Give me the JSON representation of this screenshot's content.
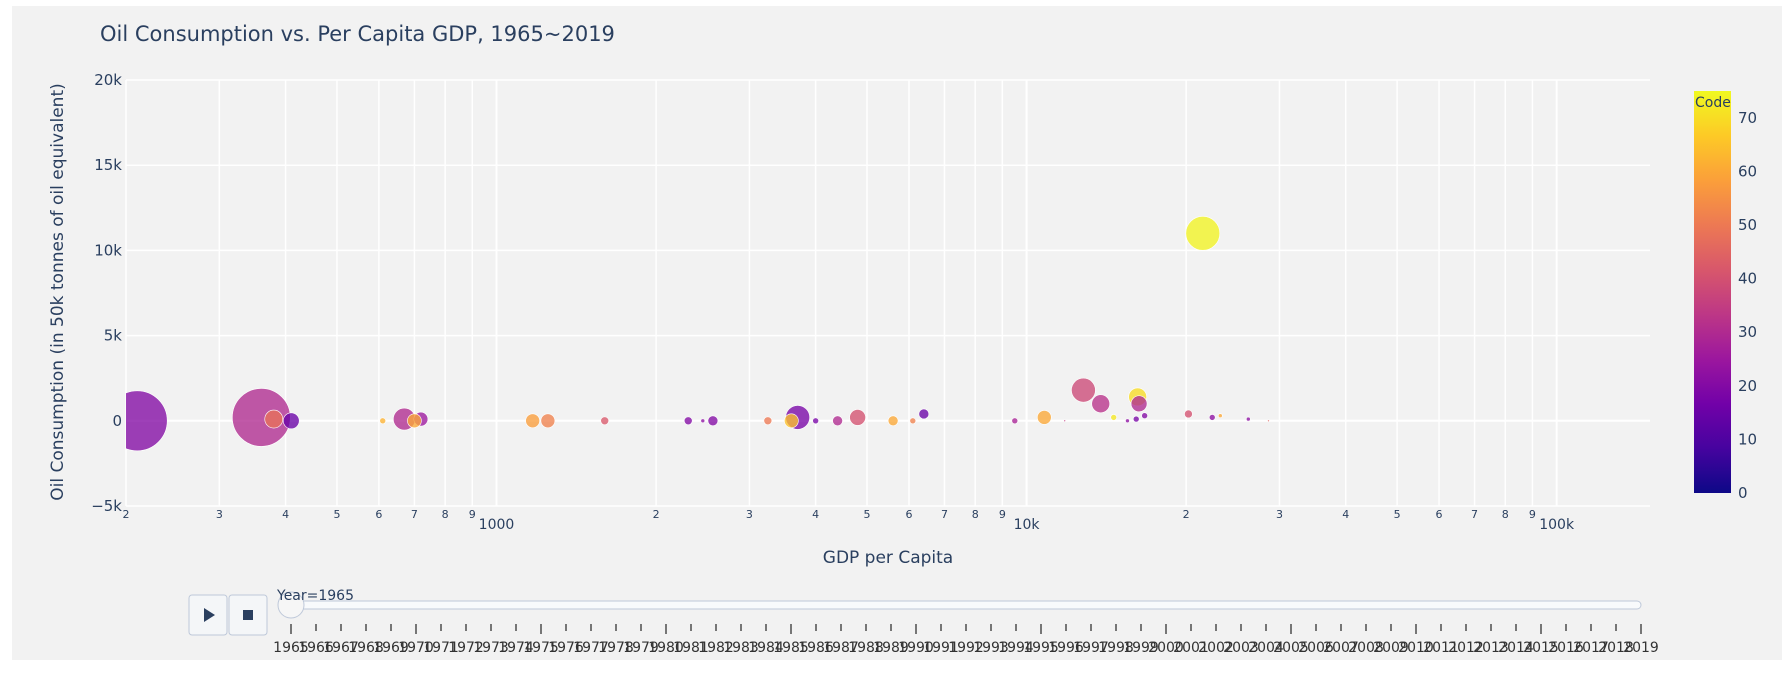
{
  "chart_data": {
    "type": "scatter",
    "title": "Oil Consumption vs. Per Capita GDP, 1965~2019",
    "xlabel": "GDP per Capita",
    "ylabel": "Oil Consumption (in 50k tonnes of oil equivalent)",
    "x_scale": "log",
    "xlim": [
      200,
      150000
    ],
    "ylim": [
      -5000,
      20000
    ],
    "y_ticks": [
      {
        "value": -5000,
        "label": "−5k"
      },
      {
        "value": 0,
        "label": "0"
      },
      {
        "value": 5000,
        "label": "5k"
      },
      {
        "value": 10000,
        "label": "10k"
      },
      {
        "value": 15000,
        "label": "15k"
      },
      {
        "value": 20000,
        "label": "20k"
      }
    ],
    "x_ticks": [
      {
        "value": 200,
        "label": "2",
        "major": false
      },
      {
        "value": 300,
        "label": "3",
        "major": false
      },
      {
        "value": 400,
        "label": "4",
        "major": false
      },
      {
        "value": 500,
        "label": "5",
        "major": false
      },
      {
        "value": 600,
        "label": "6",
        "major": false
      },
      {
        "value": 700,
        "label": "7",
        "major": false
      },
      {
        "value": 800,
        "label": "8",
        "major": false
      },
      {
        "value": 900,
        "label": "9",
        "major": false
      },
      {
        "value": 1000,
        "label": "1000",
        "major": true
      },
      {
        "value": 2000,
        "label": "2",
        "major": false
      },
      {
        "value": 3000,
        "label": "3",
        "major": false
      },
      {
        "value": 4000,
        "label": "4",
        "major": false
      },
      {
        "value": 5000,
        "label": "5",
        "major": false
      },
      {
        "value": 6000,
        "label": "6",
        "major": false
      },
      {
        "value": 7000,
        "label": "7",
        "major": false
      },
      {
        "value": 8000,
        "label": "8",
        "major": false
      },
      {
        "value": 9000,
        "label": "9",
        "major": false
      },
      {
        "value": 10000,
        "label": "10k",
        "major": true
      },
      {
        "value": 20000,
        "label": "2",
        "major": false
      },
      {
        "value": 30000,
        "label": "3",
        "major": false
      },
      {
        "value": 40000,
        "label": "4",
        "major": false
      },
      {
        "value": 50000,
        "label": "5",
        "major": false
      },
      {
        "value": 60000,
        "label": "6",
        "major": false
      },
      {
        "value": 70000,
        "label": "7",
        "major": false
      },
      {
        "value": 80000,
        "label": "8",
        "major": false
      },
      {
        "value": 90000,
        "label": "9",
        "major": false
      },
      {
        "value": 100000,
        "label": "100k",
        "major": true
      }
    ],
    "colorbar": {
      "title": "Code",
      "min": 0,
      "max": 75,
      "ticks": [
        0,
        10,
        20,
        30,
        40,
        50,
        60,
        70
      ],
      "colorscale": [
        "#0d0887",
        "#46039f",
        "#7201a8",
        "#9c179e",
        "#bd3786",
        "#d8576b",
        "#ed7953",
        "#fb9f3a",
        "#fdca26",
        "#f0f921"
      ]
    },
    "points": [
      {
        "x": 210,
        "y": 0,
        "code": 20,
        "size": 30
      },
      {
        "x": 360,
        "y": 200,
        "code": 30,
        "size": 29
      },
      {
        "x": 380,
        "y": 100,
        "code": 48,
        "size": 9
      },
      {
        "x": 410,
        "y": 0,
        "code": 15,
        "size": 8
      },
      {
        "x": 610,
        "y": 0,
        "code": 62,
        "size": 3
      },
      {
        "x": 670,
        "y": 100,
        "code": 30,
        "size": 11
      },
      {
        "x": 720,
        "y": 100,
        "code": 25,
        "size": 7
      },
      {
        "x": 700,
        "y": 0,
        "code": 60,
        "size": 7
      },
      {
        "x": 1170,
        "y": 0,
        "code": 58,
        "size": 7
      },
      {
        "x": 1250,
        "y": 0,
        "code": 52,
        "size": 7
      },
      {
        "x": 1600,
        "y": 0,
        "code": 42,
        "size": 4
      },
      {
        "x": 2300,
        "y": 0,
        "code": 20,
        "size": 4
      },
      {
        "x": 2450,
        "y": 0,
        "code": 22,
        "size": 2
      },
      {
        "x": 2560,
        "y": 0,
        "code": 20,
        "size": 5
      },
      {
        "x": 3250,
        "y": 0,
        "code": 50,
        "size": 4
      },
      {
        "x": 3700,
        "y": 200,
        "code": 18,
        "size": 12
      },
      {
        "x": 3600,
        "y": 0,
        "code": 65,
        "size": 7
      },
      {
        "x": 4000,
        "y": 0,
        "code": 18,
        "size": 3
      },
      {
        "x": 4400,
        "y": 0,
        "code": 30,
        "size": 5
      },
      {
        "x": 4800,
        "y": 200,
        "code": 40,
        "size": 8
      },
      {
        "x": 5600,
        "y": 0,
        "code": 60,
        "size": 5
      },
      {
        "x": 6100,
        "y": 0,
        "code": 52,
        "size": 3
      },
      {
        "x": 6400,
        "y": 400,
        "code": 15,
        "size": 5
      },
      {
        "x": 9500,
        "y": 0,
        "code": 28,
        "size": 3
      },
      {
        "x": 10800,
        "y": 200,
        "code": 60,
        "size": 7
      },
      {
        "x": 11800,
        "y": 0,
        "code": 35,
        "size": 1
      },
      {
        "x": 12800,
        "y": 1800,
        "code": 38,
        "size": 12
      },
      {
        "x": 13800,
        "y": 1000,
        "code": 32,
        "size": 9
      },
      {
        "x": 14600,
        "y": 200,
        "code": 72,
        "size": 3
      },
      {
        "x": 15500,
        "y": 0,
        "code": 22,
        "size": 2
      },
      {
        "x": 16200,
        "y": 1400,
        "code": 70,
        "size": 9
      },
      {
        "x": 16300,
        "y": 1000,
        "code": 30,
        "size": 8
      },
      {
        "x": 16100,
        "y": 100,
        "code": 18,
        "size": 3
      },
      {
        "x": 16700,
        "y": 300,
        "code": 20,
        "size": 3
      },
      {
        "x": 20200,
        "y": 400,
        "code": 40,
        "size": 4
      },
      {
        "x": 21500,
        "y": 11000,
        "code": 74,
        "size": 17
      },
      {
        "x": 22400,
        "y": 200,
        "code": 22,
        "size": 3
      },
      {
        "x": 23200,
        "y": 300,
        "code": 60,
        "size": 2
      },
      {
        "x": 26200,
        "y": 100,
        "code": 22,
        "size": 2
      },
      {
        "x": 28600,
        "y": 0,
        "code": 45,
        "size": 1
      }
    ]
  },
  "controls": {
    "play_icon": "play-icon",
    "stop_icon": "stop-icon"
  },
  "slider": {
    "current_label": "Year=1965",
    "current_year": 1965,
    "years": [
      "1965",
      "1966",
      "1967",
      "1968",
      "1969",
      "1970",
      "1971",
      "1972",
      "1973",
      "1974",
      "1975",
      "1976",
      "1977",
      "1978",
      "1979",
      "1980",
      "1981",
      "1982",
      "1983",
      "1984",
      "1985",
      "1986",
      "1987",
      "1988",
      "1989",
      "1990",
      "1991",
      "1992",
      "1993",
      "1994",
      "1995",
      "1996",
      "1997",
      "1998",
      "1999",
      "2000",
      "2001",
      "2002",
      "2003",
      "2004",
      "2005",
      "2006",
      "2007",
      "2008",
      "2009",
      "2010",
      "2011",
      "2012",
      "2013",
      "2014",
      "2015",
      "2016",
      "2017",
      "2018",
      "2019"
    ]
  }
}
